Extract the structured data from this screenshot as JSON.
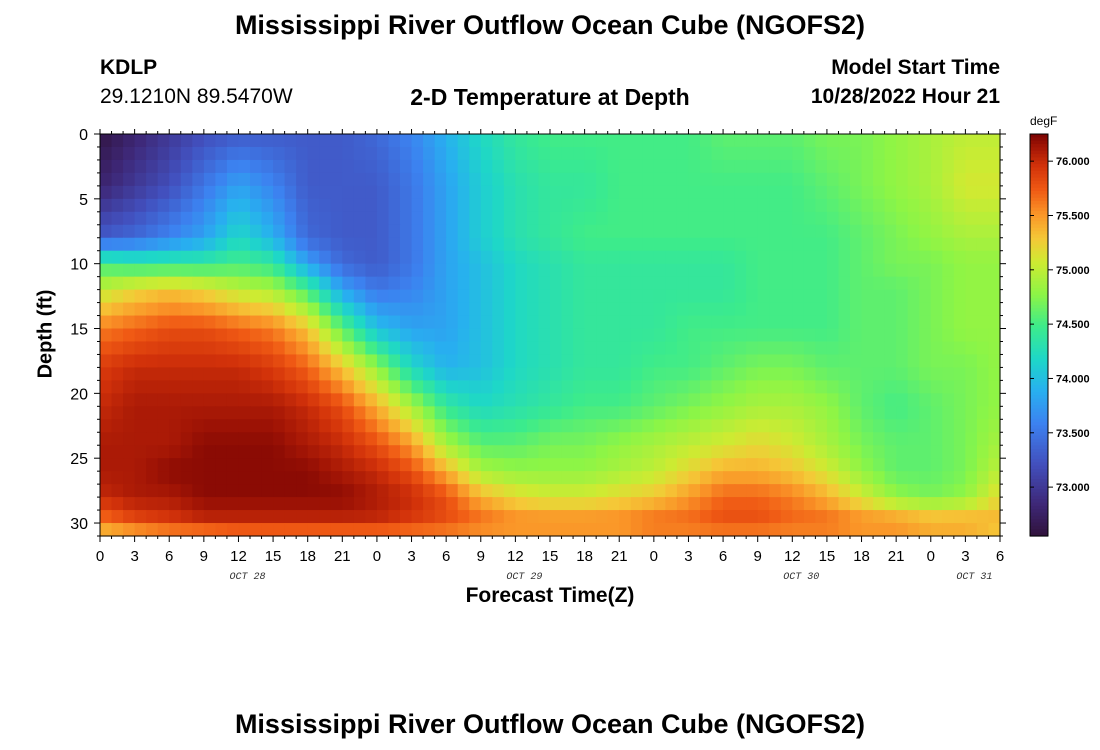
{
  "header": {
    "title_top": "Mississippi River Outflow Ocean Cube (NGOFS2)",
    "title_bottom": "Mississippi River Outflow Ocean Cube (NGOFS2)",
    "station": "KDLP",
    "coordinates": "29.1210N  89.5470W",
    "subtitle": "2-D Temperature at Depth",
    "model_start_label": "Model Start Time",
    "model_start_value": "10/28/2022 Hour 21"
  },
  "chart_data": {
    "type": "heatmap",
    "title": "2-D Temperature at Depth",
    "xlabel": "Forecast Time(Z)",
    "ylabel": "Depth (ft)",
    "x_tick_labels": [
      "0",
      "3",
      "6",
      "9",
      "12",
      "15",
      "18",
      "21",
      "0",
      "3",
      "6",
      "9",
      "12",
      "15",
      "18",
      "21",
      "0",
      "3",
      "6",
      "9",
      "12",
      "15",
      "18",
      "21",
      "0",
      "3",
      "6"
    ],
    "date_labels": [
      {
        "label": "OCT 28",
        "hour": 12
      },
      {
        "label": "OCT 29",
        "hour": 36
      },
      {
        "label": "OCT 30",
        "hour": 60
      },
      {
        "label": "OCT 31",
        "hour": 75
      }
    ],
    "x_range_hours": [
      0,
      78
    ],
    "y_ticks": [
      0,
      5,
      10,
      15,
      20,
      25,
      30
    ],
    "y_range_ft": [
      0,
      31
    ],
    "y_inverted": true,
    "colorbar": {
      "unit": "degF",
      "range": [
        72.55,
        76.25
      ],
      "ticks": [
        "73.000",
        "73.500",
        "74.000",
        "74.500",
        "75.000",
        "75.500",
        "76.000"
      ],
      "colormap": "turbo"
    },
    "field_keypoints": {
      "hours": [
        0,
        3,
        6,
        9,
        12,
        15,
        18,
        21,
        24,
        27,
        30,
        33,
        36,
        39,
        42,
        45,
        48,
        51,
        54,
        57,
        60,
        63,
        66,
        69,
        72,
        75,
        78
      ],
      "depths_ft": [
        0,
        4,
        8,
        10,
        12,
        15,
        18,
        21,
        24,
        26,
        28,
        30,
        31
      ],
      "temperature_degF": [
        [
          72.6,
          72.8,
          73.0,
          73.2,
          73.3,
          73.3,
          73.3,
          73.3,
          73.4,
          73.6,
          73.9,
          74.2,
          74.4,
          74.5,
          74.5,
          74.5,
          74.5,
          74.5,
          74.6,
          74.6,
          74.6,
          74.7,
          74.7,
          74.8,
          74.9,
          75.0,
          75.0
        ],
        [
          72.8,
          73.0,
          73.2,
          73.5,
          73.8,
          73.6,
          73.3,
          73.3,
          73.3,
          73.5,
          73.8,
          74.1,
          74.3,
          74.4,
          74.4,
          74.5,
          74.5,
          74.5,
          74.5,
          74.5,
          74.5,
          74.6,
          74.7,
          74.8,
          74.9,
          75.1,
          75.1
        ],
        [
          73.3,
          73.4,
          73.6,
          73.8,
          74.2,
          73.9,
          73.4,
          73.3,
          73.3,
          73.5,
          73.8,
          74.1,
          74.3,
          74.4,
          74.5,
          74.5,
          74.5,
          74.5,
          74.5,
          74.5,
          74.5,
          74.5,
          74.6,
          74.7,
          74.8,
          74.9,
          74.9
        ],
        [
          74.5,
          74.4,
          74.4,
          74.4,
          74.5,
          74.4,
          73.8,
          73.4,
          73.3,
          73.5,
          73.8,
          74.0,
          74.2,
          74.3,
          74.4,
          74.4,
          74.4,
          74.4,
          74.4,
          74.5,
          74.5,
          74.5,
          74.6,
          74.7,
          74.7,
          74.8,
          74.8
        ],
        [
          75.0,
          75.2,
          75.3,
          75.2,
          75.0,
          74.9,
          74.5,
          73.8,
          73.5,
          73.6,
          73.8,
          74.0,
          74.2,
          74.3,
          74.4,
          74.4,
          74.4,
          74.4,
          74.4,
          74.5,
          74.5,
          74.5,
          74.6,
          74.6,
          74.7,
          74.8,
          74.8
        ],
        [
          75.6,
          75.7,
          75.8,
          75.8,
          75.7,
          75.6,
          75.3,
          74.6,
          74.0,
          73.8,
          73.8,
          74.0,
          74.2,
          74.3,
          74.4,
          74.4,
          74.4,
          74.5,
          74.5,
          74.5,
          74.5,
          74.5,
          74.6,
          74.6,
          74.7,
          74.8,
          74.8
        ],
        [
          75.9,
          76.0,
          76.0,
          76.0,
          76.0,
          75.9,
          75.7,
          75.3,
          74.8,
          74.2,
          73.9,
          74.0,
          74.2,
          74.3,
          74.4,
          74.4,
          74.5,
          74.5,
          74.6,
          74.7,
          74.7,
          74.6,
          74.6,
          74.6,
          74.7,
          74.7,
          74.8
        ],
        [
          76.0,
          76.1,
          76.1,
          76.1,
          76.1,
          76.1,
          76.0,
          75.8,
          75.4,
          74.9,
          74.4,
          74.2,
          74.3,
          74.4,
          74.5,
          74.5,
          74.6,
          74.7,
          74.8,
          74.9,
          74.9,
          74.8,
          74.6,
          74.5,
          74.6,
          74.7,
          74.8
        ],
        [
          76.1,
          76.1,
          76.1,
          76.2,
          76.2,
          76.2,
          76.1,
          76.0,
          75.8,
          75.5,
          74.9,
          74.6,
          74.6,
          74.7,
          74.7,
          74.8,
          74.9,
          75.0,
          75.1,
          75.2,
          75.1,
          74.9,
          74.7,
          74.6,
          74.6,
          74.7,
          74.9
        ],
        [
          76.1,
          76.1,
          76.2,
          76.2,
          76.2,
          76.2,
          76.2,
          76.1,
          76.0,
          75.8,
          75.4,
          74.9,
          74.8,
          74.8,
          74.8,
          74.9,
          75.0,
          75.2,
          75.4,
          75.4,
          75.3,
          75.1,
          74.8,
          74.6,
          74.6,
          74.7,
          75.0
        ],
        [
          76.0,
          76.1,
          76.1,
          76.2,
          76.2,
          76.2,
          76.2,
          76.2,
          76.1,
          76.0,
          75.8,
          75.4,
          75.2,
          75.1,
          75.1,
          75.2,
          75.3,
          75.5,
          75.7,
          75.7,
          75.6,
          75.4,
          75.1,
          74.8,
          74.7,
          74.8,
          75.2
        ],
        [
          75.6,
          75.8,
          75.9,
          76.0,
          76.0,
          76.0,
          76.0,
          76.0,
          76.0,
          75.9,
          75.8,
          75.7,
          75.6,
          75.6,
          75.6,
          75.6,
          75.7,
          75.7,
          75.8,
          75.8,
          75.7,
          75.7,
          75.6,
          75.6,
          75.5,
          75.5,
          75.4
        ],
        [
          75.2,
          75.3,
          75.4,
          75.4,
          75.5,
          75.5,
          75.5,
          75.5,
          75.5,
          75.5,
          75.5,
          75.4,
          75.4,
          75.4,
          75.4,
          75.4,
          75.5,
          75.5,
          75.5,
          75.5,
          75.5,
          75.5,
          75.4,
          75.4,
          75.3,
          75.3,
          75.2
        ]
      ]
    }
  }
}
